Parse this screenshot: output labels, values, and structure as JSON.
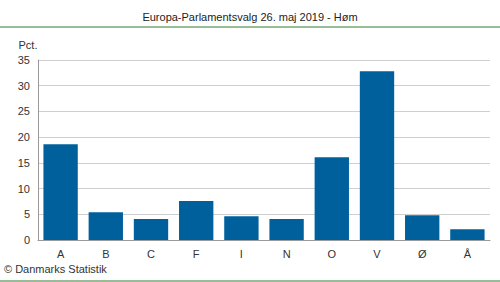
{
  "chart_data": {
    "type": "bar",
    "title": "Europa-Parlamentsvalg 26. maj 2019 - Høm",
    "y_label": "Pct.",
    "source": "© Danmarks Statistik",
    "categories": [
      "A",
      "B",
      "C",
      "F",
      "I",
      "N",
      "O",
      "V",
      "Ø",
      "Å"
    ],
    "values": [
      18.6,
      5.4,
      4.1,
      7.6,
      4.6,
      4.1,
      16.1,
      32.8,
      4.8,
      2.1
    ],
    "color": "#00609c",
    "ylim": [
      0,
      35
    ],
    "yticks": [
      0,
      5,
      10,
      15,
      20,
      25,
      30,
      35
    ],
    "grid": true
  }
}
